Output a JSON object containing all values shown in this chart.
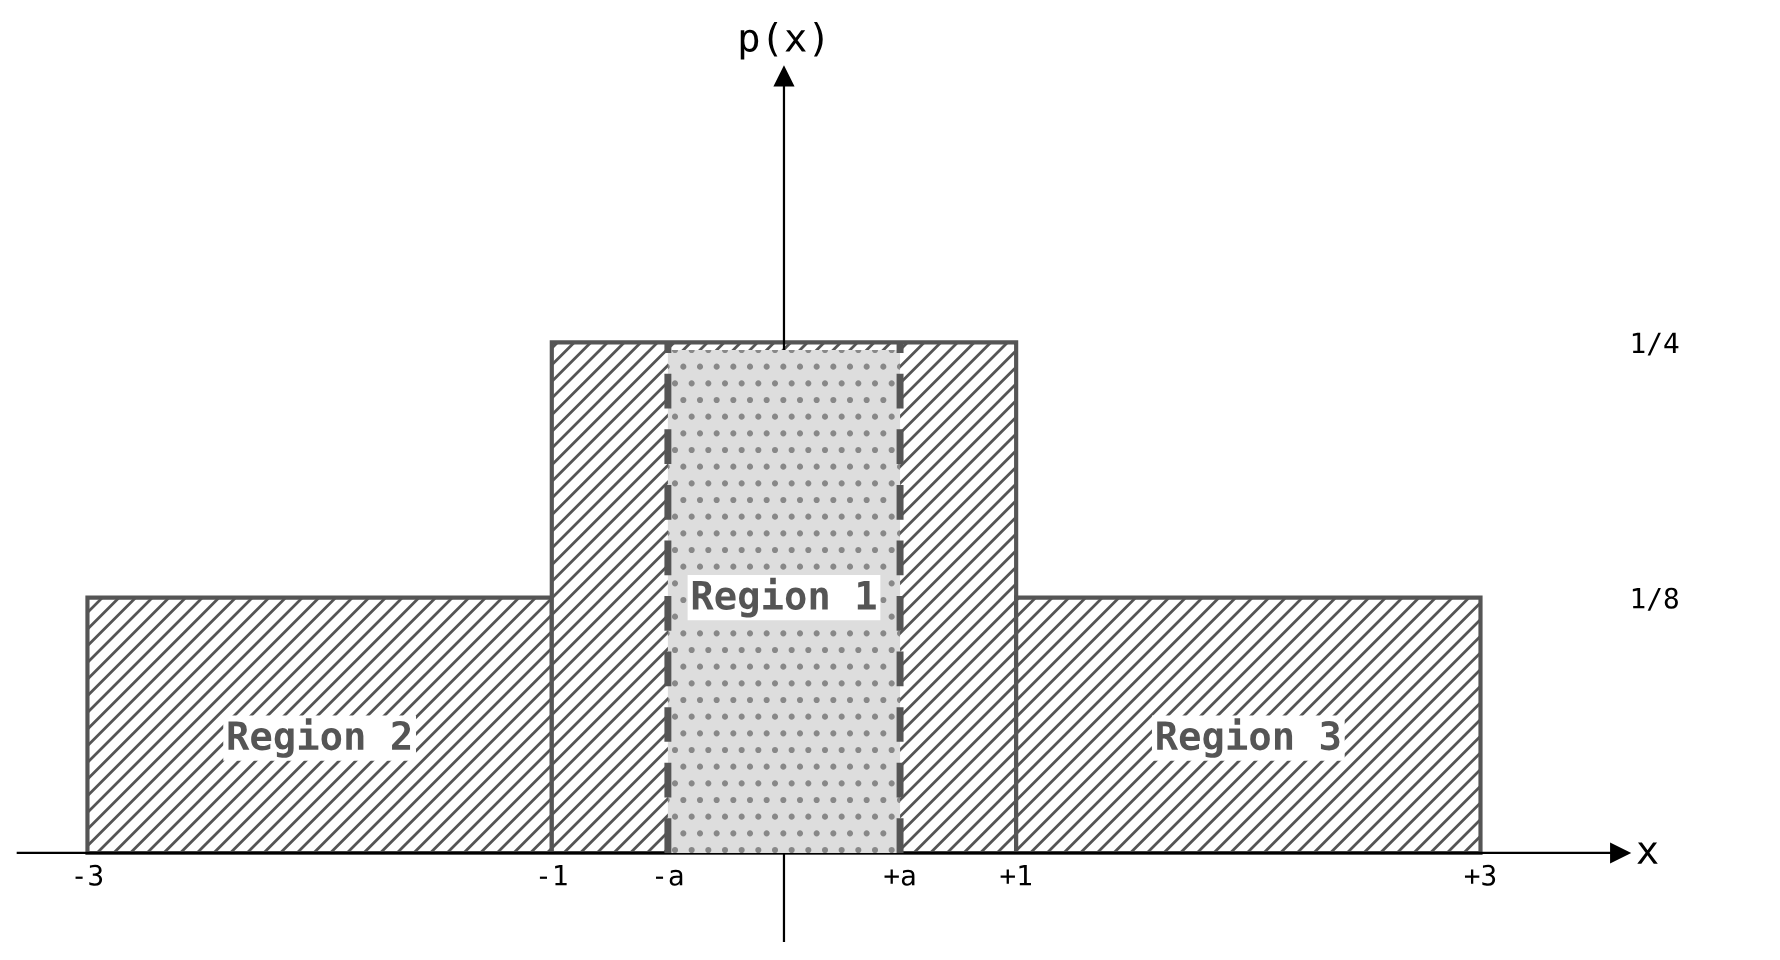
{
  "chart_data": {
    "type": "histogram",
    "xlabel": "x",
    "ylabel": "p(x)",
    "bins": [
      -3,
      -1,
      1,
      3
    ],
    "values": [
      0.125,
      0.25,
      0.125
    ],
    "color": "#555555",
    "xlim": [
      -3.3,
      3.6
    ],
    "ylim": [
      -0.043,
      0.38
    ],
    "xticks": [
      {
        "value": -3,
        "label": "-3"
      },
      {
        "value": -1,
        "label": "-1"
      },
      {
        "value": -0.5,
        "label": "-a"
      },
      {
        "value": 0.5,
        "label": "+a"
      },
      {
        "value": 1,
        "label": "+1"
      },
      {
        "value": 3,
        "label": "+3"
      }
    ],
    "yticks": [
      {
        "value": 0.125,
        "label": "1/8"
      },
      {
        "value": 0.25,
        "label": "1/4"
      }
    ],
    "ref_lines": [
      {
        "axis": "x",
        "value": -0.5,
        "line_style": "dashed",
        "color": "#555555"
      },
      {
        "axis": "x",
        "value": 0.5,
        "line_style": "dashed",
        "color": "#555555"
      }
    ],
    "bands": [
      {
        "axis": "x",
        "from": -0.5,
        "to": 0.5,
        "color": "#dddddd"
      }
    ],
    "annotations": [
      "Region 2",
      "Region 1",
      "Region 3"
    ],
    "grid": false,
    "legend": false
  }
}
